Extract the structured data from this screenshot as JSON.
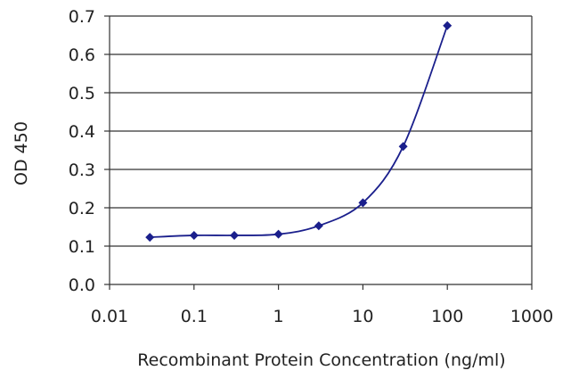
{
  "chart_data": {
    "type": "scatter",
    "title": "",
    "xlabel": "Recombinant Protein Concentration (ng/ml)",
    "ylabel": "OD 450",
    "x_scale": "log",
    "xlim": [
      0.01,
      1000
    ],
    "ylim": [
      0.0,
      0.7
    ],
    "x_ticks": [
      "0.01",
      "0.1",
      "1",
      "10",
      "100",
      "1000"
    ],
    "y_ticks": [
      "0.0",
      "0.1",
      "0.2",
      "0.3",
      "0.4",
      "0.5",
      "0.6",
      "0.7"
    ],
    "grid": "horizontal",
    "legend": "none",
    "fit_curve": "smooth line",
    "series": [
      {
        "x": [
          0.03,
          0.1,
          0.3,
          1,
          3,
          10,
          30,
          100
        ],
        "y": [
          0.123,
          0.128,
          0.128,
          0.131,
          0.153,
          0.213,
          0.36,
          0.675
        ]
      }
    ],
    "colors": {
      "series": "#1a1f8c",
      "grid": "#333333",
      "axis": "#333333"
    }
  }
}
